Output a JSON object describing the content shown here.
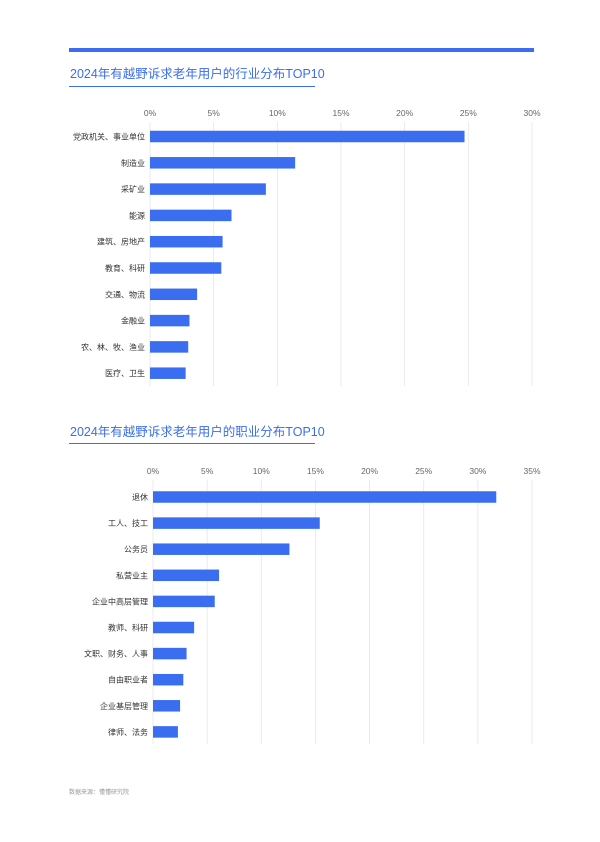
{
  "sections": [
    {
      "title": "2024年有越野诉求老年用户的行业分布TOP10"
    },
    {
      "title": "2024年有越野诉求老年用户的职业分布TOP10"
    }
  ],
  "source": "数据来源：懂懂研究院",
  "colors": {
    "accent": "#3a6df0",
    "bar": "#3a6df0",
    "grid": "#e6e6e6"
  },
  "chart_data": [
    {
      "type": "bar",
      "orientation": "horizontal",
      "title": "2024年有越野诉求老年用户的行业分布TOP10",
      "categories": [
        "党政机关、事业单位",
        "制造业",
        "采矿业",
        "能源",
        "建筑、房地产",
        "教育、科研",
        "交通、物流",
        "金融业",
        "农、林、牧、渔业",
        "医疗、卫生"
      ],
      "values": [
        24.7,
        11.4,
        9.1,
        6.4,
        5.7,
        5.6,
        3.7,
        3.1,
        3.0,
        2.8
      ],
      "xlim": [
        0,
        30
      ],
      "ticks": [
        0,
        5,
        10,
        15,
        20,
        25,
        30
      ],
      "tick_labels": [
        "0%",
        "5%",
        "10%",
        "15%",
        "20%",
        "25%",
        "30%"
      ],
      "grid": true,
      "legend": "none"
    },
    {
      "type": "bar",
      "orientation": "horizontal",
      "title": "2024年有越野诉求老年用户的职业分布TOP10",
      "categories": [
        "退休",
        "工人、技工",
        "公务员",
        "私营业主",
        "企业中高层管理",
        "教师、科研",
        "文职、财务、人事",
        "自由职业者",
        "企业基层管理",
        "律师、法务"
      ],
      "values": [
        31.7,
        15.4,
        12.6,
        6.1,
        5.7,
        3.8,
        3.1,
        2.8,
        2.5,
        2.3
      ],
      "xlim": [
        0,
        35
      ],
      "ticks": [
        0,
        5,
        10,
        15,
        20,
        25,
        30,
        35
      ],
      "tick_labels": [
        "0%",
        "5%",
        "10%",
        "15%",
        "20%",
        "25%",
        "30%",
        "35%"
      ],
      "grid": true,
      "legend": "none"
    }
  ]
}
